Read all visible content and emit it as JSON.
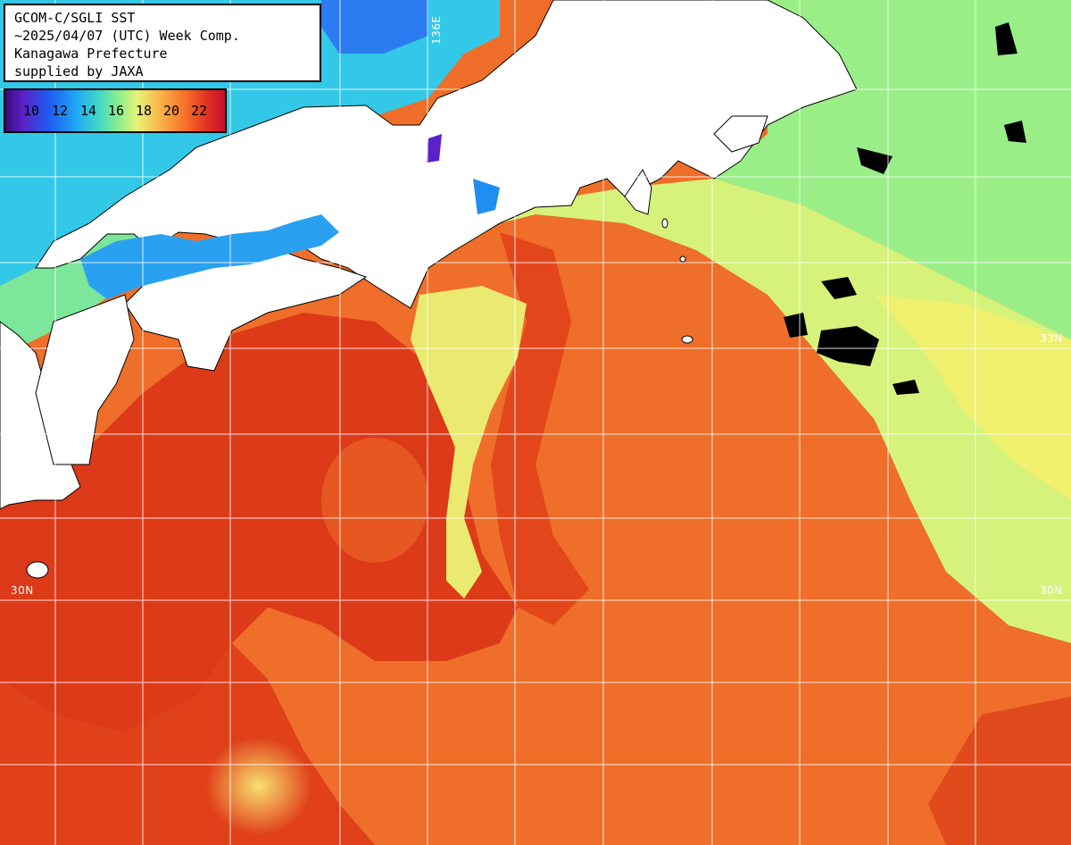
{
  "title_box": {
    "lines": [
      "GCOM-C/SGLI SST",
      "~2025/04/07 (UTC) Week Comp.",
      "Kanagawa Prefecture",
      "supplied by JAXA"
    ]
  },
  "legend": {
    "ticks": [
      "10",
      "12",
      "14",
      "16",
      "18",
      "20",
      "22"
    ],
    "colors": [
      "#3a0a78",
      "#1e5cf0",
      "#1fa6f6",
      "#3ed6c8",
      "#8ef08a",
      "#fbb64a",
      "#f7702a",
      "#c8102c"
    ]
  },
  "grid_labels": {
    "lon_136": "136E",
    "lat_33": "33N",
    "lat_30_left": "30N",
    "lat_30_right": "30N"
  },
  "colors": {
    "land": "#ffffff",
    "warm_sea": "#e8541e",
    "hot_sea": "#dc3a18",
    "cool_sea": "#c8f07a",
    "cold_sea": "#2cc8e6",
    "cloud": "#000000"
  }
}
